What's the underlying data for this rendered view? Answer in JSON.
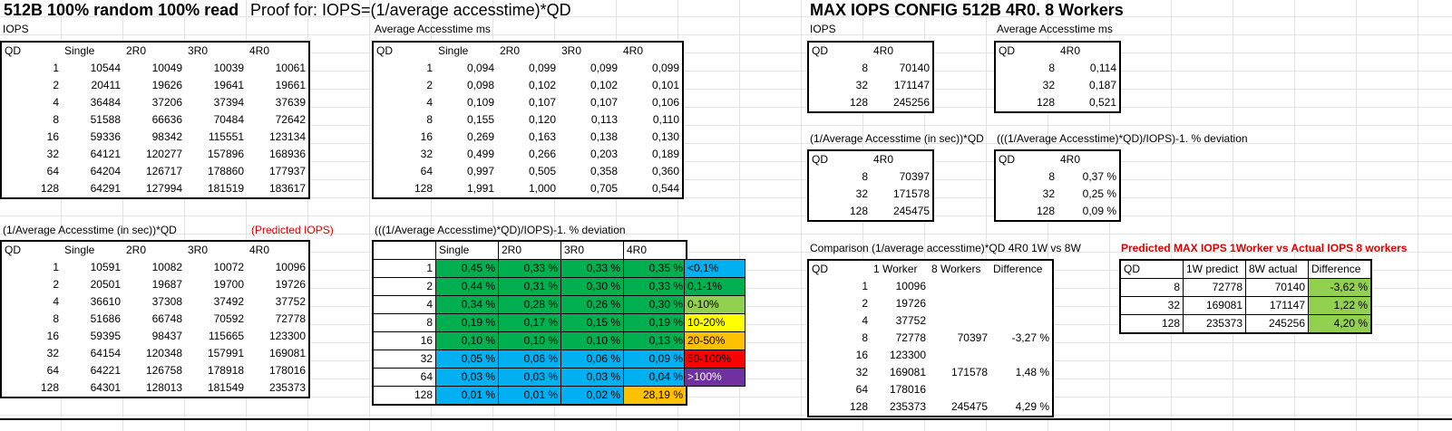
{
  "titles": {
    "main": "512B 100% random 100% read",
    "proof": "Proof for: IOPS=(1/average accesstime)*QD",
    "max": "MAX IOPS CONFIG 512B 4R0. 8 Workers"
  },
  "labels": {
    "iops": "IOPS",
    "avg_ms": "Average Accesstime ms",
    "calc": "(1/Average Accesstime (in sec))*QD",
    "predicted": "(Predicted IOPS)",
    "deviation": "(((1/Average Accesstime)*QD)/IOPS)-1. % deviation",
    "max_iops": "IOPS",
    "max_avg": "Average Accesstime ms",
    "max_calc": "(1/Average Accesstime (in sec))*QD",
    "max_dev": "(((1/Average Accesstime)*QD)/IOPS)-1. % deviation",
    "comparison": "Comparison (1/average accesstime)*QD 4R0 1W vs 8W",
    "predicted_max": "Predicted MAX IOPS 1Worker vs Actual IOPS 8 workers"
  },
  "iops_table": {
    "headers": [
      "QD",
      "Single",
      "2R0",
      "3R0",
      "4R0"
    ],
    "rows": [
      [
        "1",
        "10544",
        "10049",
        "10039",
        "10061"
      ],
      [
        "2",
        "20411",
        "19626",
        "19641",
        "19661"
      ],
      [
        "4",
        "36484",
        "37206",
        "37394",
        "37639"
      ],
      [
        "8",
        "51588",
        "66636",
        "70484",
        "72642"
      ],
      [
        "16",
        "59336",
        "98342",
        "115551",
        "123134"
      ],
      [
        "32",
        "64121",
        "120277",
        "157896",
        "168936"
      ],
      [
        "64",
        "64204",
        "126717",
        "178860",
        "177937"
      ],
      [
        "128",
        "64291",
        "127994",
        "181519",
        "183617"
      ]
    ]
  },
  "avg_table": {
    "headers": [
      "QD",
      "Single",
      "2R0",
      "3R0",
      "4R0"
    ],
    "rows": [
      [
        "1",
        "0,094",
        "0,099",
        "0,099",
        "0,099"
      ],
      [
        "2",
        "0,098",
        "0,102",
        "0,102",
        "0,101"
      ],
      [
        "4",
        "0,109",
        "0,107",
        "0,107",
        "0,106"
      ],
      [
        "8",
        "0,155",
        "0,120",
        "0,113",
        "0,110"
      ],
      [
        "16",
        "0,269",
        "0,163",
        "0,138",
        "0,130"
      ],
      [
        "32",
        "0,499",
        "0,266",
        "0,203",
        "0,189"
      ],
      [
        "64",
        "0,997",
        "0,505",
        "0,358",
        "0,360"
      ],
      [
        "128",
        "1,991",
        "1,000",
        "0,705",
        "0,544"
      ]
    ]
  },
  "calc_table": {
    "headers": [
      "QD",
      "Single",
      "2R0",
      "3R0",
      "4R0"
    ],
    "rows": [
      [
        "1",
        "10591",
        "10082",
        "10072",
        "10096"
      ],
      [
        "2",
        "20501",
        "19687",
        "19700",
        "19726"
      ],
      [
        "4",
        "36610",
        "37308",
        "37492",
        "37752"
      ],
      [
        "8",
        "51686",
        "66748",
        "70592",
        "72778"
      ],
      [
        "16",
        "59395",
        "98437",
        "115665",
        "123300"
      ],
      [
        "32",
        "64154",
        "120348",
        "157991",
        "169081"
      ],
      [
        "64",
        "64221",
        "126758",
        "178918",
        "178016"
      ],
      [
        "128",
        "64301",
        "128013",
        "181549",
        "235373"
      ]
    ]
  },
  "dev_table": {
    "headers": [
      "",
      "Single",
      "2R0",
      "3R0",
      "4R0"
    ],
    "rows": [
      [
        "1",
        "0,45 %",
        "0,33 %",
        "0,33 %",
        "0,35 %"
      ],
      [
        "2",
        "0,44 %",
        "0,31 %",
        "0,30 %",
        "0,33 %"
      ],
      [
        "4",
        "0,34 %",
        "0,28 %",
        "0,26 %",
        "0,30 %"
      ],
      [
        "8",
        "0,19 %",
        "0,17 %",
        "0,15 %",
        "0,19 %"
      ],
      [
        "16",
        "0,10 %",
        "0,10 %",
        "0,10 %",
        "0,13 %"
      ],
      [
        "32",
        "0,05 %",
        "0,06 %",
        "0,06 %",
        "0,09 %"
      ],
      [
        "64",
        "0,03 %",
        "0,03 %",
        "0,03 %",
        "0,04 %"
      ],
      [
        "128",
        "0,01 %",
        "0,01 %",
        "0,02 %",
        "28,19 %"
      ]
    ],
    "colors": [
      [
        "g",
        "g",
        "g",
        "g"
      ],
      [
        "g",
        "g",
        "g",
        "g"
      ],
      [
        "g",
        "g",
        "g",
        "g"
      ],
      [
        "g",
        "g",
        "g",
        "g"
      ],
      [
        "g",
        "g",
        "g",
        "g"
      ],
      [
        "bl",
        "bl",
        "bl",
        "bl"
      ],
      [
        "bl",
        "bl",
        "bl",
        "bl"
      ],
      [
        "bl",
        "bl",
        "bl",
        "or"
      ]
    ]
  },
  "legend": [
    {
      "label": "<0,1%",
      "color": "bl"
    },
    {
      "label": "0,1-1%",
      "color": "g"
    },
    {
      "label": "0-10%",
      "color": "lg"
    },
    {
      "label": "10-20%",
      "color": "ye"
    },
    {
      "label": "20-50%",
      "color": "or"
    },
    {
      "label": "50-100%",
      "color": "rd"
    },
    {
      "label": ">100%",
      "color": "pu"
    }
  ],
  "max_iops_table": {
    "headers": [
      "QD",
      "4R0"
    ],
    "rows": [
      [
        "8",
        "70140"
      ],
      [
        "32",
        "171147"
      ],
      [
        "128",
        "245256"
      ]
    ]
  },
  "max_avg_table": {
    "headers": [
      "QD",
      "4R0"
    ],
    "rows": [
      [
        "8",
        "0,114"
      ],
      [
        "32",
        "0,187"
      ],
      [
        "128",
        "0,521"
      ]
    ]
  },
  "max_calc_table": {
    "headers": [
      "QD",
      "4R0"
    ],
    "rows": [
      [
        "8",
        "70397"
      ],
      [
        "32",
        "171578"
      ],
      [
        "128",
        "245475"
      ]
    ]
  },
  "max_dev_table": {
    "headers": [
      "QD",
      "4R0"
    ],
    "rows": [
      [
        "8",
        "0,37 %"
      ],
      [
        "32",
        "0,25 %"
      ],
      [
        "128",
        "0,09 %"
      ]
    ]
  },
  "comparison_table": {
    "headers": [
      "QD",
      "1 Worker",
      "8 Workers",
      "Difference"
    ],
    "rows": [
      [
        "1",
        "10096",
        "",
        ""
      ],
      [
        "2",
        "19726",
        "",
        ""
      ],
      [
        "4",
        "37752",
        "",
        ""
      ],
      [
        "8",
        "72778",
        "70397",
        "-3,27 %"
      ],
      [
        "16",
        "123300",
        "",
        ""
      ],
      [
        "32",
        "169081",
        "171578",
        "1,48 %"
      ],
      [
        "64",
        "178016",
        "",
        ""
      ],
      [
        "128",
        "235373",
        "245475",
        "4,29 %"
      ]
    ]
  },
  "predicted_table": {
    "headers": [
      "QD",
      "1W predict",
      "8W actual",
      "Difference"
    ],
    "rows": [
      [
        "8",
        "72778",
        "70140",
        "-3,62 %"
      ],
      [
        "32",
        "169081",
        "171147",
        "1,22 %"
      ],
      [
        "128",
        "235373",
        "245256",
        "4,20 %"
      ]
    ]
  }
}
